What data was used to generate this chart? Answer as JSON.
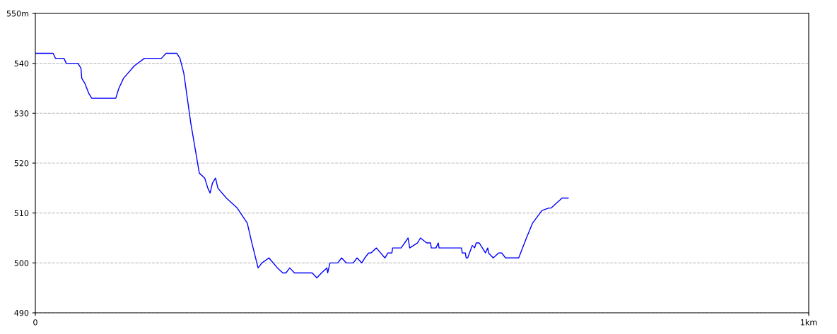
{
  "chart_data": {
    "type": "line",
    "x": [
      0,
      0.023,
      0.026,
      0.037,
      0.04,
      0.055,
      0.059,
      0.06,
      0.064,
      0.069,
      0.073,
      0.104,
      0.108,
      0.114,
      0.128,
      0.141,
      0.163,
      0.169,
      0.183,
      0.187,
      0.192,
      0.201,
      0.212,
      0.219,
      0.223,
      0.226,
      0.229,
      0.233,
      0.236,
      0.247,
      0.261,
      0.274,
      0.28,
      0.288,
      0.293,
      0.302,
      0.313,
      0.32,
      0.324,
      0.329,
      0.335,
      0.358,
      0.364,
      0.37,
      0.377,
      0.378,
      0.381,
      0.391,
      0.396,
      0.402,
      0.411,
      0.416,
      0.422,
      0.426,
      0.431,
      0.434,
      0.441,
      0.452,
      0.456,
      0.461,
      0.462,
      0.473,
      0.482,
      0.484,
      0.494,
      0.498,
      0.506,
      0.511,
      0.512,
      0.518,
      0.521,
      0.522,
      0.551,
      0.552,
      0.556,
      0.557,
      0.559,
      0.565,
      0.568,
      0.57,
      0.574,
      0.582,
      0.585,
      0.586,
      0.592,
      0.599,
      0.603,
      0.608,
      0.625,
      0.635,
      0.643,
      0.655,
      0.664,
      0.667,
      0.681,
      0.689
    ],
    "series": [
      {
        "color": "#0000ff",
        "values": [
          542,
          542,
          541,
          541,
          540,
          540,
          539,
          537,
          536,
          534,
          533,
          533,
          535,
          537,
          539.5,
          541,
          541,
          542,
          542,
          541,
          538,
          528,
          518,
          517,
          515,
          514,
          516,
          517,
          515,
          513,
          511,
          508,
          504,
          499,
          500,
          501,
          499,
          498,
          498,
          499,
          498,
          498,
          497,
          498,
          499,
          498,
          500,
          500,
          501,
          500,
          500,
          501,
          500,
          501,
          502,
          502,
          503,
          501,
          502,
          502,
          503,
          503,
          505,
          503,
          504,
          505,
          504,
          504,
          503,
          503,
          504,
          503,
          503,
          502,
          502,
          501,
          501,
          503.5,
          503,
          504,
          504,
          502,
          503,
          502,
          501,
          502,
          502,
          501,
          501,
          505,
          508,
          510.5,
          511,
          511,
          513,
          513
        ]
      }
    ],
    "xlim": [
      0,
      1
    ],
    "xticks": [
      0,
      {
        "value": 1,
        "label": "1km"
      }
    ],
    "ylim": [
      490,
      550
    ],
    "yticks": [
      490,
      500,
      510,
      520,
      530,
      540,
      {
        "value": 550,
        "label": "550m"
      }
    ],
    "grid": "y",
    "line_style": "solid",
    "marker": "none"
  }
}
